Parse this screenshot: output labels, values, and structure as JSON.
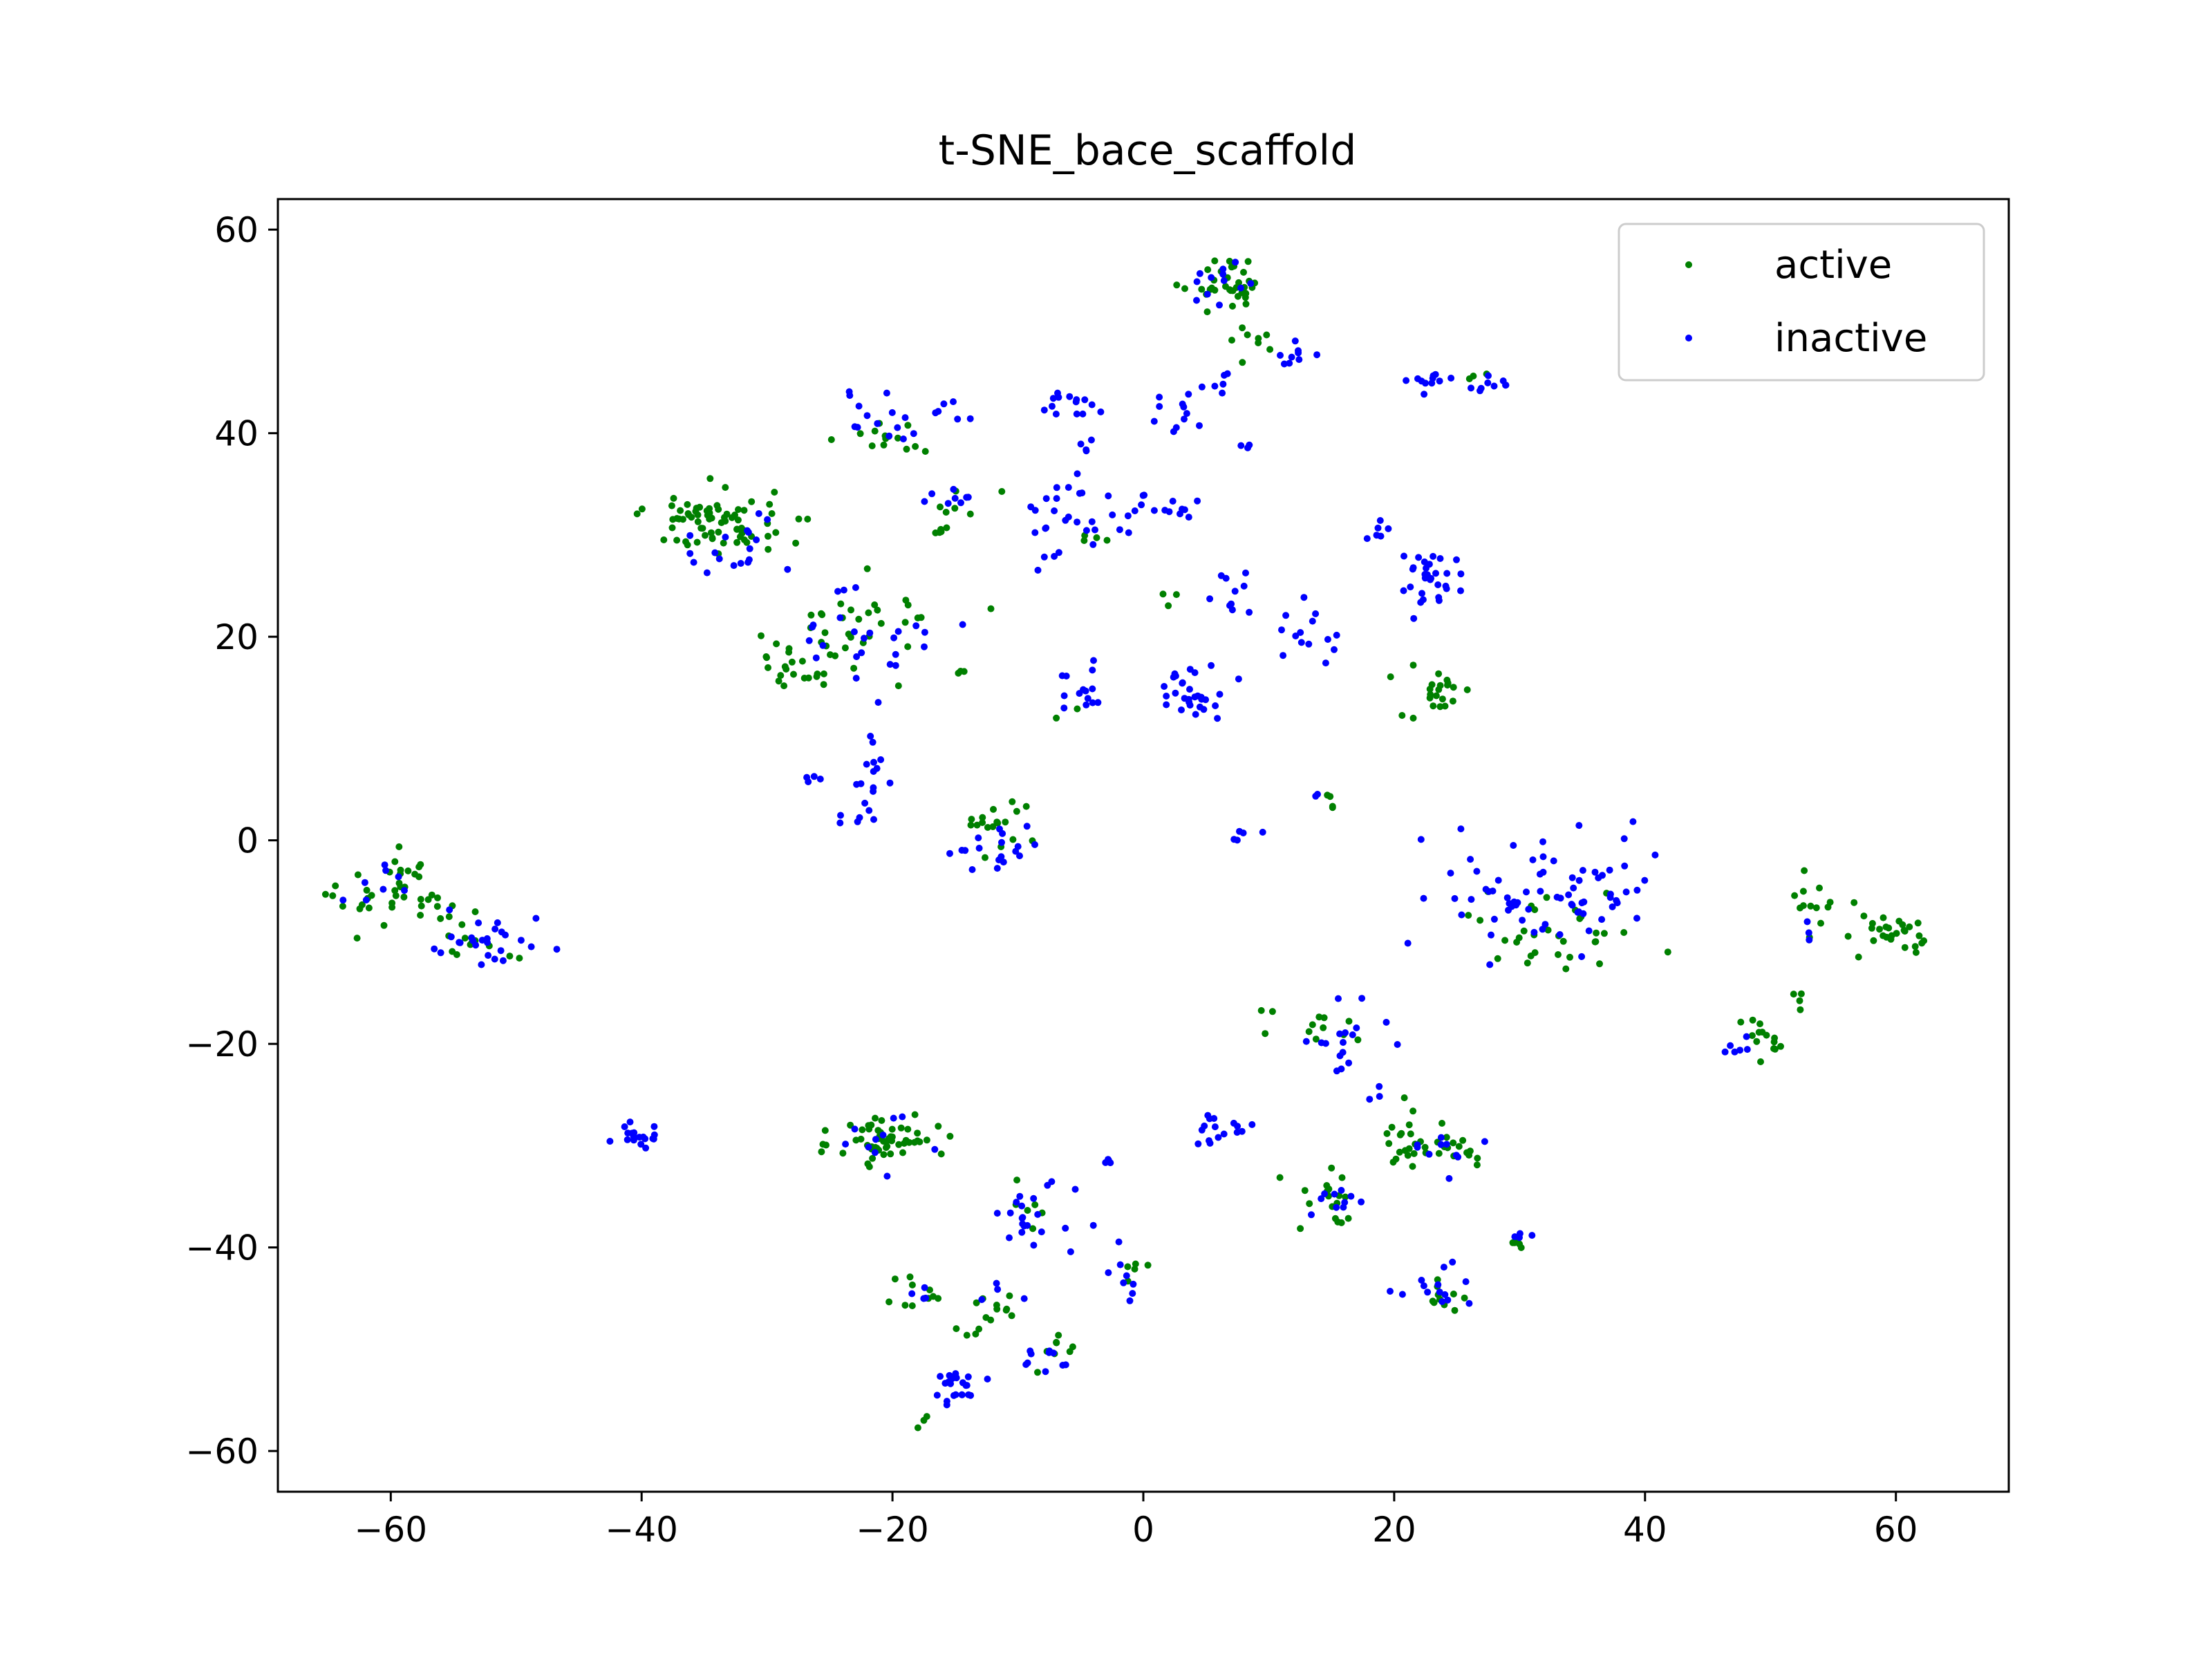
{
  "chart_data": {
    "type": "scatter",
    "title": "t-SNE_bace_scaffold",
    "xlabel": "",
    "ylabel": "",
    "xlim": [
      -69,
      69
    ],
    "ylim": [
      -64,
      63
    ],
    "xticks": [
      -60,
      -40,
      -20,
      0,
      20,
      40,
      60
    ],
    "yticks": [
      -60,
      -40,
      -20,
      0,
      20,
      40,
      60
    ],
    "legend_position": "top-right",
    "series": [
      {
        "name": "active",
        "color": "#008000",
        "clusters": [
          {
            "c": [
              6.5,
              55
            ],
            "s": [
              1.8,
              1.3
            ],
            "n": 34
          },
          {
            "c": [
              8,
              49
            ],
            "s": [
              1.2,
              1.5
            ],
            "n": 9
          },
          {
            "c": [
              -34.5,
              31.5
            ],
            "s": [
              2.5,
              1.6
            ],
            "n": 70
          },
          {
            "c": [
              -28,
              30
            ],
            "s": [
              0.6,
              1
            ],
            "n": 4
          },
          {
            "c": [
              -20.5,
              39.5
            ],
            "s": [
              1.8,
              1.1
            ],
            "n": 14
          },
          {
            "c": [
              -16,
              30.5
            ],
            "s": [
              0.7,
              0.3
            ],
            "n": 5
          },
          {
            "c": [
              -14.5,
              33.5
            ],
            "s": [
              1,
              1
            ],
            "n": 6
          },
          {
            "c": [
              -22,
              21
            ],
            "s": [
              3,
              2.2
            ],
            "n": 30
          },
          {
            "c": [
              -28,
              17.5
            ],
            "s": [
              1.8,
              1.5
            ],
            "n": 22
          },
          {
            "c": [
              -14.5,
              16.5
            ],
            "s": [
              0.3,
              0.5
            ],
            "n": 3
          },
          {
            "c": [
              -12,
              23
            ],
            "s": [
              0.2,
              0.2
            ],
            "n": 1
          },
          {
            "c": [
              -11.5,
              1.5
            ],
            "s": [
              1.5,
              1.5
            ],
            "n": 18
          },
          {
            "c": [
              -59,
              -5.5
            ],
            "s": [
              2.5,
              1.8
            ],
            "n": 40
          },
          {
            "c": [
              -53.5,
              -9
            ],
            "s": [
              1.8,
              1.5
            ],
            "n": 14
          },
          {
            "c": [
              -20.5,
              -29.5
            ],
            "s": [
              2,
              1.3
            ],
            "n": 55
          },
          {
            "c": [
              -17.5,
              -44.5
            ],
            "s": [
              1.5,
              1.5
            ],
            "n": 10
          },
          {
            "c": [
              -12.5,
              -46.5
            ],
            "s": [
              1.5,
              1.3
            ],
            "n": 14
          },
          {
            "c": [
              -7,
              -50.5
            ],
            "s": [
              2,
              1
            ],
            "n": 8
          },
          {
            "c": [
              -17.5,
              -57.5
            ],
            "s": [
              0.5,
              0.5
            ],
            "n": 3
          },
          {
            "c": [
              -9.5,
              -36
            ],
            "s": [
              1.2,
              1
            ],
            "n": 6
          },
          {
            "c": [
              -1.5,
              -42
            ],
            "s": [
              1,
              0.8
            ],
            "n": 5
          },
          {
            "c": [
              23.5,
              -29.5
            ],
            "s": [
              2.5,
              1.5
            ],
            "n": 36
          },
          {
            "c": [
              15,
              -35.5
            ],
            "s": [
              1.6,
              1.5
            ],
            "n": 18
          },
          {
            "c": [
              14,
              -19
            ],
            "s": [
              2.5,
              1.2
            ],
            "n": 12
          },
          {
            "c": [
              23.5,
              -45
            ],
            "s": [
              1.2,
              1
            ],
            "n": 10
          },
          {
            "c": [
              30,
              -39.5
            ],
            "s": [
              0.6,
              0.5
            ],
            "n": 5
          },
          {
            "c": [
              23.5,
              15
            ],
            "s": [
              1.4,
              1
            ],
            "n": 20
          },
          {
            "c": [
              21,
              12.5
            ],
            "s": [
              0.5,
              0.4
            ],
            "n": 2
          },
          {
            "c": [
              27,
              46
            ],
            "s": [
              0.8,
              0.6
            ],
            "n": 3
          },
          {
            "c": [
              33,
              -9
            ],
            "s": [
              3,
              2.2
            ],
            "n": 32
          },
          {
            "c": [
              53.5,
              -6
            ],
            "s": [
              1.2,
              1
            ],
            "n": 12
          },
          {
            "c": [
              59.5,
              -9.5
            ],
            "s": [
              2.2,
              1.2
            ],
            "n": 28
          },
          {
            "c": [
              49.5,
              -19.5
            ],
            "s": [
              1.2,
              1.1
            ],
            "n": 14
          },
          {
            "c": [
              52.5,
              -15
            ],
            "s": [
              0.6,
              0.5
            ],
            "n": 4
          },
          {
            "c": [
              15,
              3.8
            ],
            "s": [
              0.5,
              0.5
            ],
            "n": 4
          },
          {
            "c": [
              2.5,
              24
            ],
            "s": [
              0.5,
              0.5
            ],
            "n": 3
          },
          {
            "c": [
              -7,
              12.5
            ],
            "s": [
              0.6,
              0.4
            ],
            "n": 2
          },
          {
            "c": [
              -4,
              30
            ],
            "s": [
              0.8,
              0.8
            ],
            "n": 4
          }
        ]
      },
      {
        "name": "inactive",
        "color": "#0000ff",
        "clusters": [
          {
            "c": [
              6,
              54.5
            ],
            "s": [
              1.5,
              1.2
            ],
            "n": 12
          },
          {
            "c": [
              12,
              48
            ],
            "s": [
              1,
              0.6
            ],
            "n": 9
          },
          {
            "c": [
              6.5,
              45
            ],
            "s": [
              0.8,
              1
            ],
            "n": 5
          },
          {
            "c": [
              -21.5,
              42
            ],
            "s": [
              1.5,
              1.3
            ],
            "n": 14
          },
          {
            "c": [
              -15.5,
              42
            ],
            "s": [
              0.8,
              0.8
            ],
            "n": 6
          },
          {
            "c": [
              -6,
              43
            ],
            "s": [
              1.5,
              0.6
            ],
            "n": 14
          },
          {
            "c": [
              3,
              41
            ],
            "s": [
              1.2,
              1.4
            ],
            "n": 12
          },
          {
            "c": [
              -4.5,
              38.5
            ],
            "s": [
              0.6,
              0.5
            ],
            "n": 4
          },
          {
            "c": [
              8,
              38.5
            ],
            "s": [
              0.6,
              0.3
            ],
            "n": 3
          },
          {
            "c": [
              -33,
              29
            ],
            "s": [
              2,
              2
            ],
            "n": 18
          },
          {
            "c": [
              -15,
              34
            ],
            "s": [
              1.5,
              0.8
            ],
            "n": 8
          },
          {
            "c": [
              -5,
              31.5
            ],
            "s": [
              2.2,
              2
            ],
            "n": 30
          },
          {
            "c": [
              2,
              33
            ],
            "s": [
              1.5,
              1
            ],
            "n": 12
          },
          {
            "c": [
              -21.5,
              20.5
            ],
            "s": [
              2.5,
              2.5
            ],
            "n": 24
          },
          {
            "c": [
              -5,
              15
            ],
            "s": [
              1.2,
              1.5
            ],
            "n": 14
          },
          {
            "c": [
              4,
              14.5
            ],
            "s": [
              1.6,
              1.3
            ],
            "n": 30
          },
          {
            "c": [
              7,
              25
            ],
            "s": [
              1.2,
              1.5
            ],
            "n": 10
          },
          {
            "c": [
              13,
              20
            ],
            "s": [
              1.3,
              1.5
            ],
            "n": 14
          },
          {
            "c": [
              19,
              30
            ],
            "s": [
              0.5,
              0.6
            ],
            "n": 6
          },
          {
            "c": [
              23,
              26
            ],
            "s": [
              1.5,
              1.5
            ],
            "n": 30
          },
          {
            "c": [
              22.5,
              45
            ],
            "s": [
              1.2,
              0.5
            ],
            "n": 10
          },
          {
            "c": [
              27,
              44.5
            ],
            "s": [
              1.2,
              0.8
            ],
            "n": 10
          },
          {
            "c": [
              -21.5,
              6.5
            ],
            "s": [
              1,
              2.5
            ],
            "n": 16
          },
          {
            "c": [
              -26.5,
              6
            ],
            "s": [
              0.6,
              0.4
            ],
            "n": 4
          },
          {
            "c": [
              -11.5,
              -0.5
            ],
            "s": [
              2,
              1.2
            ],
            "n": 18
          },
          {
            "c": [
              9,
              0.5
            ],
            "s": [
              0.8,
              0.3
            ],
            "n": 5
          },
          {
            "c": [
              14,
              4.5
            ],
            "s": [
              0.3,
              0.3
            ],
            "n": 2
          },
          {
            "c": [
              -52.5,
              -10.5
            ],
            "s": [
              2.2,
              1.5
            ],
            "n": 26
          },
          {
            "c": [
              -61,
              -4.5
            ],
            "s": [
              1.5,
              1.2
            ],
            "n": 8
          },
          {
            "c": [
              -40.5,
              -29
            ],
            "s": [
              1,
              0.8
            ],
            "n": 18
          },
          {
            "c": [
              -21,
              -29.5
            ],
            "s": [
              1.5,
              1.3
            ],
            "n": 10
          },
          {
            "c": [
              -9,
              -37
            ],
            "s": [
              1.8,
              1.5
            ],
            "n": 22
          },
          {
            "c": [
              -2.5,
              -31.5
            ],
            "s": [
              0.4,
              0.2
            ],
            "n": 4
          },
          {
            "c": [
              -2.5,
              -43
            ],
            "s": [
              0.8,
              1.5
            ],
            "n": 8
          },
          {
            "c": [
              -15,
              -54
            ],
            "s": [
              1,
              1.2
            ],
            "n": 22
          },
          {
            "c": [
              -8,
              -51
            ],
            "s": [
              1.5,
              0.8
            ],
            "n": 10
          },
          {
            "c": [
              -17.5,
              -45.5
            ],
            "s": [
              1,
              0.8
            ],
            "n": 4
          },
          {
            "c": [
              -12,
              -44.5
            ],
            "s": [
              1.2,
              1
            ],
            "n": 4
          },
          {
            "c": [
              7,
              -28
            ],
            "s": [
              1.2,
              0.8
            ],
            "n": 16
          },
          {
            "c": [
              17,
              -20
            ],
            "s": [
              1.8,
              2
            ],
            "n": 20
          },
          {
            "c": [
              23,
              -44
            ],
            "s": [
              1.5,
              1.2
            ],
            "n": 14
          },
          {
            "c": [
              30,
              -39
            ],
            "s": [
              0.5,
              0.5
            ],
            "n": 4
          },
          {
            "c": [
              24.5,
              -30.5
            ],
            "s": [
              1.5,
              1.2
            ],
            "n": 10
          },
          {
            "c": [
              15,
              -36
            ],
            "s": [
              1.5,
              1.2
            ],
            "n": 10
          },
          {
            "c": [
              31,
              -5
            ],
            "s": [
              4,
              3
            ],
            "n": 60
          },
          {
            "c": [
              37,
              -3
            ],
            "s": [
              2,
              2
            ],
            "n": 14
          },
          {
            "c": [
              48,
              -20
            ],
            "s": [
              0.8,
              0.5
            ],
            "n": 6
          },
          {
            "c": [
              53,
              -9
            ],
            "s": [
              0.5,
              0.5
            ],
            "n": 3
          },
          {
            "c": [
              -23,
              2.5
            ],
            "s": [
              1.5,
              0.8
            ],
            "n": 4
          }
        ]
      }
    ]
  }
}
